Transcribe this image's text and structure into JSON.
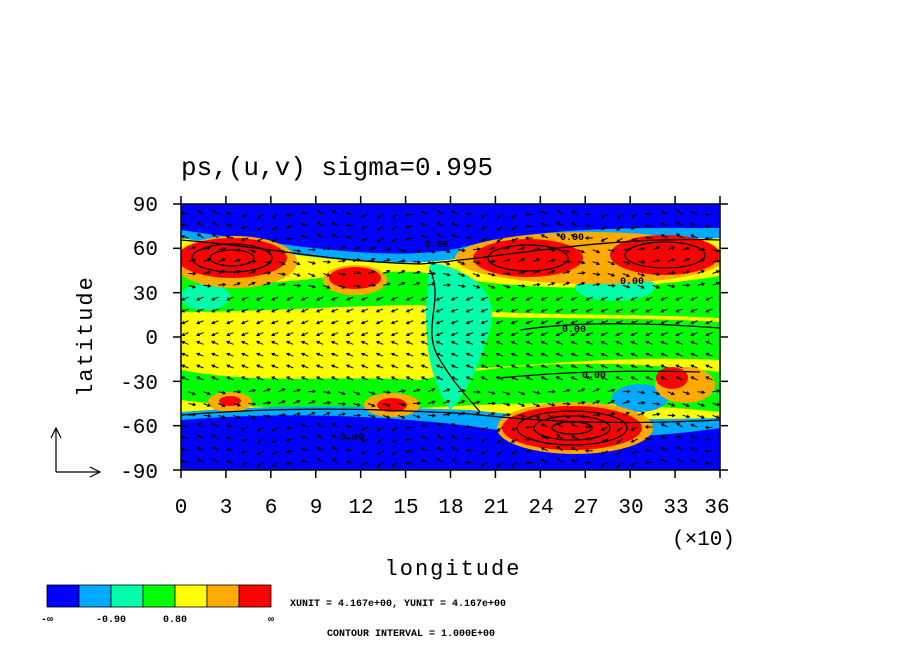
{
  "chart_data": {
    "type": "heatmap",
    "title": "ps,(u,v) sigma=0.995",
    "xlabel": "longitude",
    "ylabel": "latitude",
    "x_multiplier_label": "(×10)",
    "xlim": [
      0,
      36
    ],
    "ylim": [
      -90,
      90
    ],
    "x_ticks": [
      "0",
      "3",
      "6",
      "9",
      "12",
      "15",
      "18",
      "21",
      "24",
      "27",
      "30",
      "33",
      "36"
    ],
    "y_ticks": [
      "90",
      "60",
      "30",
      "0",
      "-30",
      "-60",
      "-90"
    ],
    "contour_labels": [
      "0.00",
      "0.00",
      "0.00",
      "0.00",
      "0.00",
      "0.00"
    ],
    "legend": {
      "colors": [
        "#0000ff",
        "#00aaff",
        "#00ffaa",
        "#00ff00",
        "#ffff00",
        "#ffaa00",
        "#ff0000"
      ],
      "labels": [
        "-∞",
        "-0.90",
        "0.80",
        "∞"
      ]
    },
    "xunit_text": "XUNIT = 4.167e+00, YUNIT = 4.167e+00",
    "contour_interval_text": "CONTOUR INTERVAL = 1.000E+00",
    "regions": [
      {
        "name": "north-polar-low",
        "lon": [
          0,
          36
        ],
        "lat": [
          68,
          90
        ],
        "level": 0
      },
      {
        "name": "south-polar-low",
        "lon": [
          0,
          36
        ],
        "lat": [
          -90,
          -60
        ],
        "level": 0
      },
      {
        "name": "north-west-high",
        "lon": [
          0,
          8
        ],
        "lat": [
          45,
          65
        ],
        "level": 6
      },
      {
        "name": "north-east-high",
        "lon": [
          19,
          36
        ],
        "lat": [
          42,
          68
        ],
        "level": 6
      },
      {
        "name": "south-high",
        "lon": [
          21,
          31
        ],
        "lat": [
          -72,
          -45
        ],
        "level": 6
      },
      {
        "name": "tropical-band",
        "lon": [
          0,
          36
        ],
        "lat": [
          -20,
          20
        ],
        "level": 4
      }
    ]
  }
}
